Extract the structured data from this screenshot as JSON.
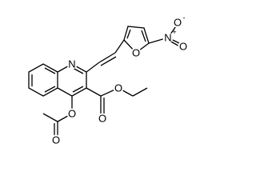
{
  "atoms": [
    {
      "label": "N"
    },
    {
      "label": "O"
    },
    {
      "label": "N",
      "charge": "+"
    },
    {
      "label": "O",
      "charge": "-"
    },
    {
      "label": "O"
    },
    {
      "label": "O"
    },
    {
      "label": "O"
    },
    {
      "label": "O"
    },
    {
      "label": "O"
    }
  ]
}
